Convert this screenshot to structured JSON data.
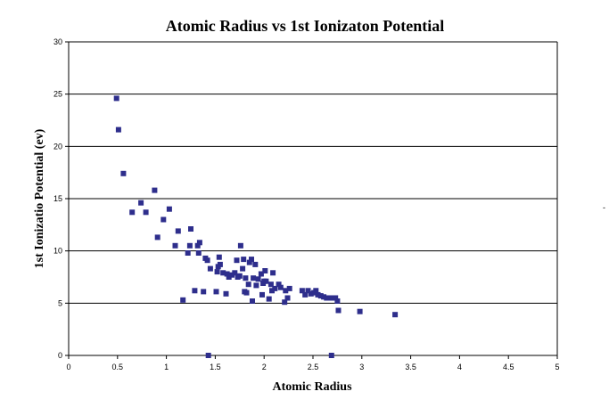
{
  "chart_data": {
    "type": "scatter",
    "title": "Atomic Radius vs 1st Ionizaton Potential",
    "xlabel": "Atomic Radius",
    "ylabel": "1st Ionizatio Potential (ev)",
    "xlim": [
      0,
      5
    ],
    "ylim": [
      0,
      30
    ],
    "x_ticks": [
      "0",
      "0.5",
      "1",
      "1.5",
      "2",
      "2.5",
      "3",
      "3.5",
      "4",
      "4.5",
      "5"
    ],
    "y_ticks": [
      "0",
      "5",
      "10",
      "15",
      "20",
      "25",
      "30"
    ],
    "grid": "horizontal",
    "marker_color": "#2e2e8c",
    "points": [
      [
        0.49,
        24.6
      ],
      [
        0.51,
        21.6
      ],
      [
        0.56,
        17.4
      ],
      [
        0.65,
        13.7
      ],
      [
        0.74,
        14.6
      ],
      [
        0.79,
        13.7
      ],
      [
        0.88,
        15.8
      ],
      [
        0.91,
        11.3
      ],
      [
        0.97,
        13.0
      ],
      [
        1.03,
        14.0
      ],
      [
        1.09,
        10.5
      ],
      [
        1.12,
        11.9
      ],
      [
        1.17,
        5.3
      ],
      [
        1.22,
        9.8
      ],
      [
        1.24,
        10.5
      ],
      [
        1.25,
        12.1
      ],
      [
        1.29,
        6.2
      ],
      [
        1.32,
        10.5
      ],
      [
        1.33,
        9.8
      ],
      [
        1.34,
        10.8
      ],
      [
        1.38,
        6.1
      ],
      [
        1.4,
        9.3
      ],
      [
        1.42,
        9.1
      ],
      [
        1.43,
        0.0
      ],
      [
        1.45,
        8.3
      ],
      [
        1.51,
        6.1
      ],
      [
        1.52,
        8.0
      ],
      [
        1.53,
        8.5
      ],
      [
        1.54,
        9.4
      ],
      [
        1.55,
        8.7
      ],
      [
        1.58,
        7.9
      ],
      [
        1.61,
        5.9
      ],
      [
        1.62,
        7.8
      ],
      [
        1.64,
        7.5
      ],
      [
        1.67,
        7.7
      ],
      [
        1.7,
        7.9
      ],
      [
        1.72,
        9.1
      ],
      [
        1.73,
        7.5
      ],
      [
        1.75,
        7.6
      ],
      [
        1.76,
        10.5
      ],
      [
        1.78,
        8.3
      ],
      [
        1.79,
        9.2
      ],
      [
        1.8,
        6.1
      ],
      [
        1.81,
        7.4
      ],
      [
        1.82,
        6.0
      ],
      [
        1.84,
        6.8
      ],
      [
        1.85,
        8.9
      ],
      [
        1.87,
        9.2
      ],
      [
        1.88,
        5.2
      ],
      [
        1.89,
        7.4
      ],
      [
        1.91,
        8.7
      ],
      [
        1.92,
        6.7
      ],
      [
        1.94,
        7.3
      ],
      [
        1.97,
        7.8
      ],
      [
        1.99,
        6.9
      ],
      [
        1.98,
        5.8
      ],
      [
        2.0,
        7.1
      ],
      [
        2.01,
        8.1
      ],
      [
        2.02,
        7.1
      ],
      [
        2.05,
        5.4
      ],
      [
        2.07,
        6.8
      ],
      [
        2.08,
        6.2
      ],
      [
        2.09,
        7.9
      ],
      [
        2.11,
        6.4
      ],
      [
        2.15,
        6.8
      ],
      [
        2.17,
        6.5
      ],
      [
        2.21,
        5.1
      ],
      [
        2.22,
        6.2
      ],
      [
        2.24,
        5.5
      ],
      [
        2.26,
        6.4
      ],
      [
        2.39,
        6.2
      ],
      [
        2.42,
        5.8
      ],
      [
        2.45,
        6.2
      ],
      [
        2.48,
        5.9
      ],
      [
        2.51,
        6.0
      ],
      [
        2.53,
        6.2
      ],
      [
        2.55,
        5.8
      ],
      [
        2.58,
        5.7
      ],
      [
        2.61,
        5.6
      ],
      [
        2.64,
        5.5
      ],
      [
        2.67,
        5.5
      ],
      [
        2.69,
        0.0
      ],
      [
        2.71,
        5.5
      ],
      [
        2.73,
        5.5
      ],
      [
        2.75,
        5.2
      ],
      [
        2.76,
        4.3
      ],
      [
        2.98,
        4.2
      ],
      [
        3.34,
        3.9
      ]
    ]
  }
}
